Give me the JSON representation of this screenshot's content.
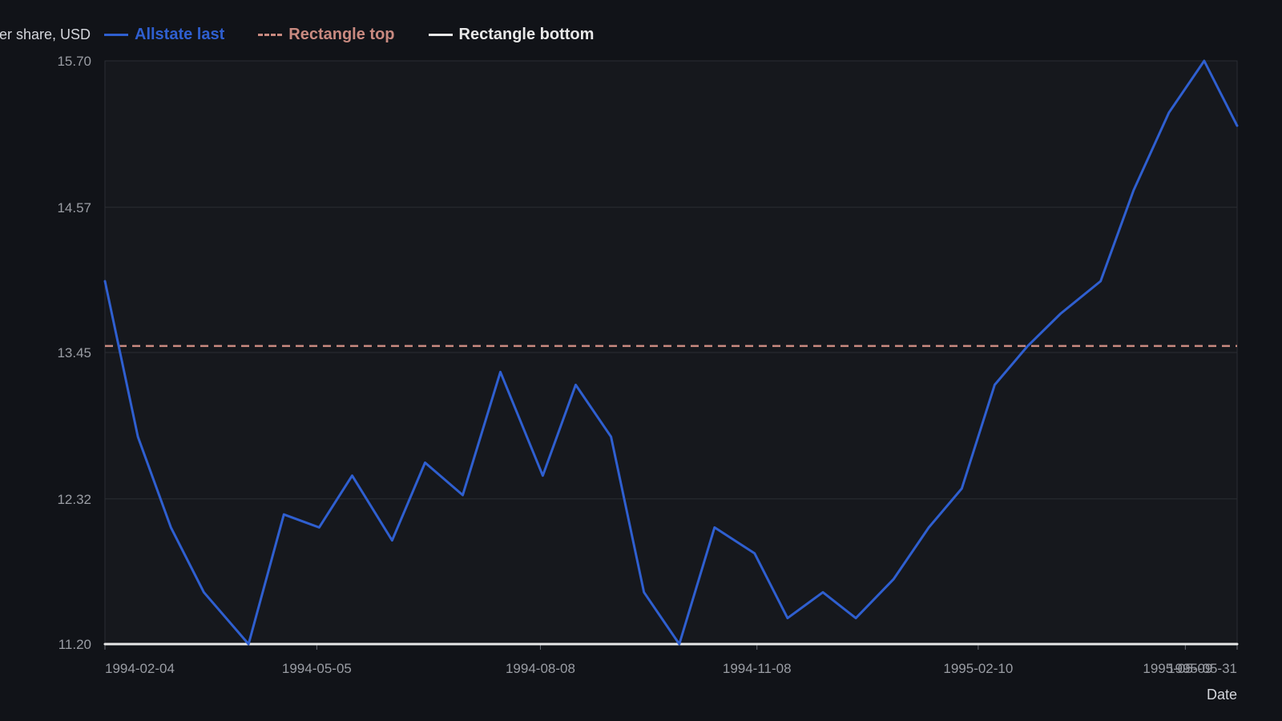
{
  "chart_data": {
    "type": "line",
    "ylabel": "Price per share, USD",
    "xlabel": "Date",
    "ylim": [
      11.2,
      15.7
    ],
    "yticks": [
      "11.20",
      "12.32",
      "13.45",
      "14.57",
      "15.70"
    ],
    "xticks": [
      "1994-02-04",
      "1994-05-05",
      "1994-08-08",
      "1994-11-08",
      "1995-02-10",
      "1995-05-09",
      "1995-05-31"
    ],
    "x_start": "1994-02-04",
    "x_end": "1995-05-31",
    "grid": true,
    "legend_position": "top-left",
    "series": [
      {
        "name": "Allstate last",
        "color": "#2f5fd0",
        "style": "solid",
        "x": [
          "1994-02-04",
          "1994-02-18",
          "1994-03-04",
          "1994-03-18",
          "1994-04-06",
          "1994-04-21",
          "1994-05-06",
          "1994-05-20",
          "1994-06-06",
          "1994-06-20",
          "1994-07-06",
          "1994-07-22",
          "1994-08-09",
          "1994-08-23",
          "1994-09-07",
          "1994-09-21",
          "1994-10-06",
          "1994-10-21",
          "1994-11-07",
          "1994-11-21",
          "1994-12-06",
          "1994-12-20",
          "1995-01-05",
          "1995-01-20",
          "1995-02-03",
          "1995-02-17",
          "1995-03-03",
          "1995-03-17",
          "1995-04-03",
          "1995-04-17",
          "1995-05-02",
          "1995-05-17",
          "1995-05-31"
        ],
        "values": [
          14.0,
          12.8,
          12.1,
          11.6,
          11.2,
          12.2,
          12.1,
          12.5,
          12.0,
          12.6,
          12.35,
          13.3,
          12.5,
          13.2,
          12.8,
          11.6,
          11.2,
          12.1,
          11.9,
          11.4,
          11.6,
          11.4,
          11.7,
          12.1,
          12.4,
          13.2,
          13.5,
          13.75,
          14.0,
          14.7,
          15.3,
          15.7,
          15.2
        ]
      },
      {
        "name": "Rectangle top",
        "color": "#c98a80",
        "style": "dashed",
        "x": [
          "1994-02-04",
          "1995-05-31"
        ],
        "values": [
          13.5,
          13.5
        ]
      },
      {
        "name": "Rectangle bottom",
        "color": "#e8e8e8",
        "style": "solid",
        "x": [
          "1994-02-04",
          "1995-05-31"
        ],
        "values": [
          11.2,
          11.2
        ]
      }
    ]
  }
}
